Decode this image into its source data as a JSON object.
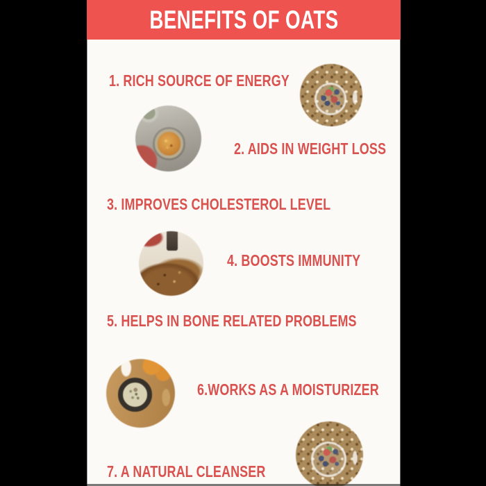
{
  "header": {
    "title": "BENEFITS OF OATS"
  },
  "benefits": [
    {
      "label": "1. RICH SOURCE OF ENERGY"
    },
    {
      "label": "2. AIDS IN WEIGHT LOSS"
    },
    {
      "label": "3. IMPROVES CHOLESTEROL LEVEL"
    },
    {
      "label": "4. BOOSTS IMMUNITY"
    },
    {
      "label": "5. HELPS IN BONE RELATED PROBLEMS"
    },
    {
      "label": "6.WORKS AS A MOISTURIZER"
    },
    {
      "label": "7. A NATURAL CLEANSER"
    }
  ],
  "photos": [
    {
      "name": "granola-berry-bowl-photo",
      "desc": "granola bowl topped with blueberries, strawberry and mint"
    },
    {
      "name": "granola-bowl-on-table-photo",
      "desc": "bowl of granola on grey table with polka-dot cloth"
    },
    {
      "name": "granola-closeup-photo",
      "desc": "close-up pile of granola with dark jar behind"
    },
    {
      "name": "oatmeal-bowl-oranges-photo",
      "desc": "overhead oatmeal bowl with orange slices and milk pour on wood"
    },
    {
      "name": "granola-berry-bowl-photo-2",
      "desc": "granola bowl topped with berries, bottom cropped"
    }
  ],
  "colors": {
    "banner": "#ee5350",
    "label_text": "#d9524f",
    "header_text": "#ffffff",
    "content_bg": "#fbfaf7",
    "letterbox": "#000000"
  }
}
